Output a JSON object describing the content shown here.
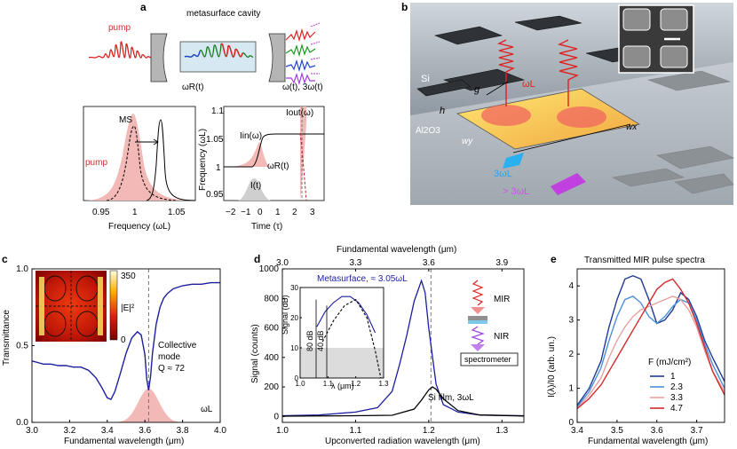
{
  "panels": {
    "a": {
      "letter": "a",
      "title": "metasurface cavity",
      "pump_label": "pump",
      "omega_r_label": "ωR(t)",
      "omega_out_label": "ω(t), 3ω(t)",
      "spectrum": {
        "pump_label": "pump",
        "ms_label": "MS",
        "xlabel": "Frequency (ωL)",
        "xticks": [
          "0.95",
          "1",
          "1.05"
        ]
      },
      "time": {
        "ylabel": "Frequency (ωL)",
        "xlabel": "Time (τ)",
        "yticks": [
          "0.95",
          "1",
          "1.05",
          "1.1"
        ],
        "xticks": [
          "−2",
          "−1",
          "0",
          "1",
          "2",
          "3"
        ],
        "iin_label": "Iin(ω)",
        "iout_label": "Iout(ω)",
        "omegar_label": "ωR(t)",
        "it_label": "I(t)"
      }
    },
    "b": {
      "letter": "b",
      "si_label": "Si",
      "al2o3_label": "Al2O3",
      "g_label": "g",
      "h_label": "h",
      "wx_label": "wx",
      "wy_label": "wy",
      "omegaL_label": "ωL",
      "third_label": "3ωL",
      "higher_label": "> 3ωL"
    },
    "c": {
      "letter": "c",
      "ylabel": "Transmittance",
      "xlabel": "Fundamental wavelength (μm)",
      "colorbar_label": "|E|²",
      "colorbar_max": "350",
      "colorbar_min": "0",
      "annotation_line1": "Collective",
      "annotation_line2": "mode",
      "annotation_line3": "Q ≈ 72",
      "omegaL_label": "ωL"
    },
    "d": {
      "letter": "d",
      "top_xlabel": "Fundamental wavelength (μm)",
      "xlabel": "Upconverted radiation wavelength (μm)",
      "ylabel": "Signal (counts)",
      "metasurface_label": "Metasurface, ≈ 3.05ωL",
      "si_film_label": "Si film, 3ωL",
      "inset_ylabel": "Signal (dB)",
      "inset_xlabel": "λ (μm)",
      "inset_yticks": [
        "0",
        "10",
        "20",
        "30"
      ],
      "inset_xticks": [
        "1.0",
        "1.1",
        "1.2",
        "1.3"
      ],
      "db80": "80 dB",
      "db40": "40 dB",
      "mir_label": "MIR",
      "nir_label": "NIR",
      "spectrometer_label": "spectrometer"
    },
    "e": {
      "letter": "e",
      "title": "Transmitted MIR pulse spectra",
      "ylabel": "I(λ)/I0 (arb. un.)",
      "xlabel": "Fundamental wavelength (μm)",
      "legend_title": "F (mJ/cm²)"
    }
  },
  "chart_data": [
    {
      "id": "c",
      "type": "line",
      "xlabel": "Fundamental wavelength (μm)",
      "ylabel": "Transmittance",
      "xlim": [
        3.0,
        4.0
      ],
      "ylim": [
        0,
        1
      ],
      "xticks": [
        3.0,
        3.2,
        3.4,
        3.6,
        3.8,
        4.0
      ],
      "yticks": [
        0,
        0.5,
        1
      ],
      "dashed_x": 3.62,
      "series": [
        {
          "name": "transmittance",
          "color": "#1c1ea0",
          "x": [
            3.0,
            3.03,
            3.06,
            3.1,
            3.14,
            3.18,
            3.22,
            3.26,
            3.3,
            3.34,
            3.37,
            3.4,
            3.42,
            3.44,
            3.47,
            3.5,
            3.53,
            3.56,
            3.58,
            3.6,
            3.61,
            3.62,
            3.63,
            3.64,
            3.66,
            3.68,
            3.7,
            3.72,
            3.75,
            3.8,
            3.85,
            3.9,
            3.95,
            4.0
          ],
          "y": [
            0.4,
            0.39,
            0.38,
            0.38,
            0.37,
            0.37,
            0.36,
            0.36,
            0.34,
            0.29,
            0.23,
            0.16,
            0.15,
            0.2,
            0.32,
            0.45,
            0.55,
            0.59,
            0.57,
            0.44,
            0.28,
            0.21,
            0.3,
            0.45,
            0.64,
            0.75,
            0.81,
            0.84,
            0.87,
            0.89,
            0.9,
            0.9,
            0.91,
            0.91
          ]
        }
      ],
      "shaded_pulse": {
        "center": 3.62,
        "sigma": 0.055,
        "height": 0.22
      }
    },
    {
      "id": "d",
      "type": "line",
      "xlabel": "Upconverted radiation wavelength (μm)",
      "ylabel": "Signal (counts)",
      "top_xlabel": "Fundamental wavelength (μm)",
      "xlim": [
        1.0,
        1.33
      ],
      "ylim": [
        -40,
        1000
      ],
      "xticks": [
        1.0,
        1.1,
        1.2,
        1.3
      ],
      "yticks": [
        0,
        200,
        400,
        600,
        800,
        1000
      ],
      "top_ticks": [
        3.0,
        3.3,
        3.6,
        3.9
      ],
      "dashed_x": 1.203,
      "series": [
        {
          "name": "Metasurface, ≈ 3.05ωL",
          "color": "#1c1ea0",
          "x": [
            1.0,
            1.05,
            1.1,
            1.13,
            1.15,
            1.16,
            1.17,
            1.18,
            1.19,
            1.195,
            1.2,
            1.21,
            1.22,
            1.24,
            1.27,
            1.33
          ],
          "y": [
            5,
            10,
            30,
            60,
            170,
            350,
            550,
            780,
            920,
            840,
            600,
            220,
            80,
            30,
            10,
            5
          ]
        },
        {
          "name": "Si film, 3ωL",
          "color": "#000000",
          "x": [
            1.0,
            1.1,
            1.15,
            1.18,
            1.19,
            1.2,
            1.205,
            1.21,
            1.22,
            1.24,
            1.27,
            1.33
          ],
          "y": [
            2,
            5,
            8,
            50,
            110,
            180,
            200,
            185,
            120,
            40,
            10,
            3
          ]
        }
      ]
    },
    {
      "id": "d-inset",
      "type": "line",
      "xlabel": "λ (μm)",
      "ylabel": "Signal (dB)",
      "xlim": [
        1.0,
        1.3
      ],
      "ylim": [
        0,
        30
      ],
      "xticks": [
        1.0,
        1.1,
        1.2,
        1.3
      ],
      "yticks": [
        0,
        10,
        20,
        30
      ],
      "shaded_below_db": 10,
      "series": [
        {
          "name": "metasurface",
          "color": "#1c1ea0",
          "x": [
            1.06,
            1.09,
            1.12,
            1.15,
            1.18,
            1.21,
            1.24,
            1.27
          ],
          "y": [
            17,
            22,
            25,
            27,
            27,
            25,
            21,
            15
          ]
        },
        {
          "name": "Si film",
          "color": "#000000",
          "dashed": true,
          "x": [
            1.08,
            1.12,
            1.16,
            1.2,
            1.24,
            1.27,
            1.29
          ],
          "y": [
            12,
            19,
            24,
            26,
            20,
            9,
            0
          ]
        }
      ]
    },
    {
      "id": "e",
      "type": "line",
      "title": "Transmitted MIR pulse spectra",
      "xlabel": "Fundamental wavelength (μm)",
      "ylabel": "I(λ)/I0 (arb. un.)",
      "xlim": [
        3.4,
        3.77
      ],
      "ylim": [
        0,
        4.5
      ],
      "xticks": [
        3.4,
        3.5,
        3.6,
        3.7
      ],
      "yticks": [
        0,
        1,
        2,
        3,
        4
      ],
      "legend_title": "F (mJ/cm²)",
      "series": [
        {
          "name": "1",
          "color": "#1f3a93",
          "x": [
            3.4,
            3.43,
            3.46,
            3.48,
            3.5,
            3.52,
            3.54,
            3.56,
            3.58,
            3.6,
            3.62,
            3.64,
            3.66,
            3.68,
            3.7,
            3.72,
            3.74,
            3.77
          ],
          "y": [
            0.5,
            1.0,
            1.8,
            2.8,
            3.6,
            4.2,
            4.3,
            4.2,
            3.6,
            2.9,
            3.0,
            3.3,
            3.8,
            3.6,
            3.1,
            2.4,
            1.9,
            1.2
          ]
        },
        {
          "name": "2.3",
          "color": "#4a90d9",
          "x": [
            3.4,
            3.43,
            3.46,
            3.48,
            3.5,
            3.52,
            3.54,
            3.56,
            3.58,
            3.6,
            3.62,
            3.64,
            3.66,
            3.68,
            3.7,
            3.72,
            3.74,
            3.77
          ],
          "y": [
            0.45,
            0.9,
            1.6,
            2.4,
            3.1,
            3.6,
            3.7,
            3.5,
            3.1,
            2.9,
            3.1,
            3.4,
            3.6,
            3.5,
            3.0,
            2.3,
            1.7,
            1.0
          ]
        },
        {
          "name": "3.3",
          "color": "#e9a0a0",
          "x": [
            3.4,
            3.43,
            3.46,
            3.48,
            3.5,
            3.52,
            3.54,
            3.56,
            3.58,
            3.6,
            3.62,
            3.64,
            3.66,
            3.68,
            3.7,
            3.72,
            3.74,
            3.77
          ],
          "y": [
            0.4,
            0.8,
            1.3,
            1.9,
            2.4,
            2.8,
            3.1,
            3.3,
            3.4,
            3.5,
            3.6,
            3.7,
            3.6,
            3.3,
            2.8,
            2.1,
            1.5,
            0.9
          ]
        },
        {
          "name": "4.7",
          "color": "#d42a2a",
          "x": [
            3.4,
            3.43,
            3.46,
            3.48,
            3.5,
            3.52,
            3.54,
            3.56,
            3.58,
            3.6,
            3.62,
            3.64,
            3.66,
            3.68,
            3.7,
            3.72,
            3.74,
            3.77
          ],
          "y": [
            0.4,
            0.7,
            1.1,
            1.5,
            1.9,
            2.3,
            2.7,
            3.1,
            3.5,
            3.9,
            4.1,
            4.2,
            3.9,
            3.5,
            2.9,
            2.2,
            1.5,
            0.8
          ]
        }
      ]
    }
  ]
}
